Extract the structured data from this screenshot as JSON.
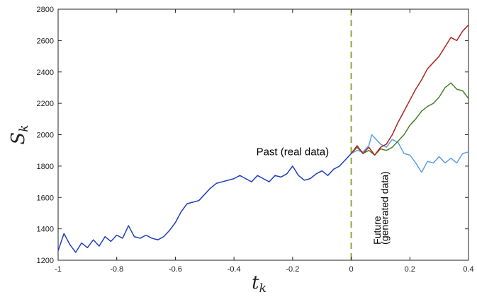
{
  "chart_data": {
    "type": "line",
    "title": "",
    "xlabel": "t",
    "xlabel_sub": "k",
    "ylabel": "S",
    "ylabel_sub": "k",
    "xlim": [
      -1,
      0.4
    ],
    "ylim": [
      1200,
      2800
    ],
    "xticks": [
      -1,
      -0.8,
      -0.6,
      -0.4,
      -0.2,
      0,
      0.2,
      0.4
    ],
    "xtick_labels": [
      "-1",
      "-0.8",
      "-0.6",
      "-0.4",
      "-0.2",
      "0",
      "0.2",
      "0.4"
    ],
    "yticks": [
      1200,
      1400,
      1600,
      1800,
      2000,
      2200,
      2400,
      2600,
      2800
    ],
    "ytick_labels": [
      "1200",
      "1400",
      "1600",
      "1800",
      "2000",
      "2200",
      "2400",
      "2600",
      "2800"
    ],
    "grid": false,
    "divider": {
      "x": 0,
      "color": "#8aaa3c",
      "style": "dashed"
    },
    "annotations": [
      {
        "text": "Past (real data)",
        "x": -0.2,
        "y": 1870
      },
      {
        "text": "Future",
        "x": 0.1,
        "y": 1300,
        "rotated": true
      },
      {
        "text": "(generated data)",
        "x": 0.125,
        "y": 1300,
        "rotated": true
      }
    ],
    "series": [
      {
        "color": "#1f3fbf",
        "points": [
          [
            -1,
            1260
          ],
          [
            -0.98,
            1370
          ],
          [
            -0.96,
            1300
          ],
          [
            -0.94,
            1250
          ],
          [
            -0.92,
            1310
          ],
          [
            -0.9,
            1280
          ],
          [
            -0.88,
            1330
          ],
          [
            -0.86,
            1290
          ],
          [
            -0.84,
            1350
          ],
          [
            -0.82,
            1320
          ],
          [
            -0.8,
            1360
          ],
          [
            -0.78,
            1340
          ],
          [
            -0.76,
            1420
          ],
          [
            -0.74,
            1350
          ],
          [
            -0.72,
            1340
          ],
          [
            -0.7,
            1360
          ],
          [
            -0.68,
            1340
          ],
          [
            -0.66,
            1330
          ],
          [
            -0.64,
            1350
          ],
          [
            -0.62,
            1390
          ],
          [
            -0.6,
            1440
          ],
          [
            -0.58,
            1510
          ],
          [
            -0.56,
            1560
          ],
          [
            -0.54,
            1570
          ],
          [
            -0.52,
            1580
          ],
          [
            -0.5,
            1620
          ],
          [
            -0.48,
            1660
          ],
          [
            -0.46,
            1690
          ],
          [
            -0.44,
            1700
          ],
          [
            -0.42,
            1710
          ],
          [
            -0.4,
            1720
          ],
          [
            -0.38,
            1740
          ],
          [
            -0.36,
            1720
          ],
          [
            -0.34,
            1700
          ],
          [
            -0.32,
            1740
          ],
          [
            -0.3,
            1720
          ],
          [
            -0.28,
            1700
          ],
          [
            -0.26,
            1740
          ],
          [
            -0.24,
            1730
          ],
          [
            -0.22,
            1750
          ],
          [
            -0.2,
            1800
          ],
          [
            -0.18,
            1740
          ],
          [
            -0.16,
            1710
          ],
          [
            -0.14,
            1720
          ],
          [
            -0.12,
            1750
          ],
          [
            -0.1,
            1770
          ],
          [
            -0.08,
            1740
          ],
          [
            -0.06,
            1780
          ],
          [
            -0.04,
            1800
          ],
          [
            -0.02,
            1840
          ],
          [
            0,
            1880
          ]
        ]
      },
      {
        "color": "#5ba0e6",
        "points": [
          [
            0,
            1880
          ],
          [
            0.02,
            1900
          ],
          [
            0.04,
            1890
          ],
          [
            0.06,
            1930
          ],
          [
            0.07,
            2000
          ],
          [
            0.08,
            1980
          ],
          [
            0.1,
            1940
          ],
          [
            0.12,
            1920
          ],
          [
            0.14,
            1970
          ],
          [
            0.16,
            1950
          ],
          [
            0.18,
            1880
          ],
          [
            0.2,
            1870
          ],
          [
            0.22,
            1820
          ],
          [
            0.24,
            1760
          ],
          [
            0.26,
            1830
          ],
          [
            0.28,
            1820
          ],
          [
            0.3,
            1860
          ],
          [
            0.32,
            1820
          ],
          [
            0.34,
            1850
          ],
          [
            0.36,
            1820
          ],
          [
            0.38,
            1880
          ],
          [
            0.4,
            1890
          ]
        ]
      },
      {
        "color": "#4a7d2a",
        "points": [
          [
            0,
            1880
          ],
          [
            0.02,
            1920
          ],
          [
            0.04,
            1880
          ],
          [
            0.06,
            1900
          ],
          [
            0.08,
            1870
          ],
          [
            0.1,
            1910
          ],
          [
            0.12,
            1900
          ],
          [
            0.14,
            1920
          ],
          [
            0.16,
            1960
          ],
          [
            0.18,
            2000
          ],
          [
            0.2,
            2060
          ],
          [
            0.22,
            2100
          ],
          [
            0.24,
            2150
          ],
          [
            0.26,
            2180
          ],
          [
            0.28,
            2200
          ],
          [
            0.3,
            2240
          ],
          [
            0.32,
            2300
          ],
          [
            0.34,
            2330
          ],
          [
            0.36,
            2290
          ],
          [
            0.38,
            2280
          ],
          [
            0.4,
            2230
          ]
        ]
      },
      {
        "color": "#b0241a",
        "points": [
          [
            0,
            1880
          ],
          [
            0.02,
            1930
          ],
          [
            0.04,
            1880
          ],
          [
            0.06,
            1920
          ],
          [
            0.08,
            1870
          ],
          [
            0.1,
            1920
          ],
          [
            0.12,
            1940
          ],
          [
            0.14,
            2000
          ],
          [
            0.16,
            2080
          ],
          [
            0.18,
            2150
          ],
          [
            0.2,
            2220
          ],
          [
            0.22,
            2290
          ],
          [
            0.24,
            2350
          ],
          [
            0.26,
            2420
          ],
          [
            0.28,
            2460
          ],
          [
            0.3,
            2500
          ],
          [
            0.32,
            2560
          ],
          [
            0.34,
            2620
          ],
          [
            0.36,
            2600
          ],
          [
            0.38,
            2660
          ],
          [
            0.4,
            2700
          ]
        ]
      }
    ]
  }
}
